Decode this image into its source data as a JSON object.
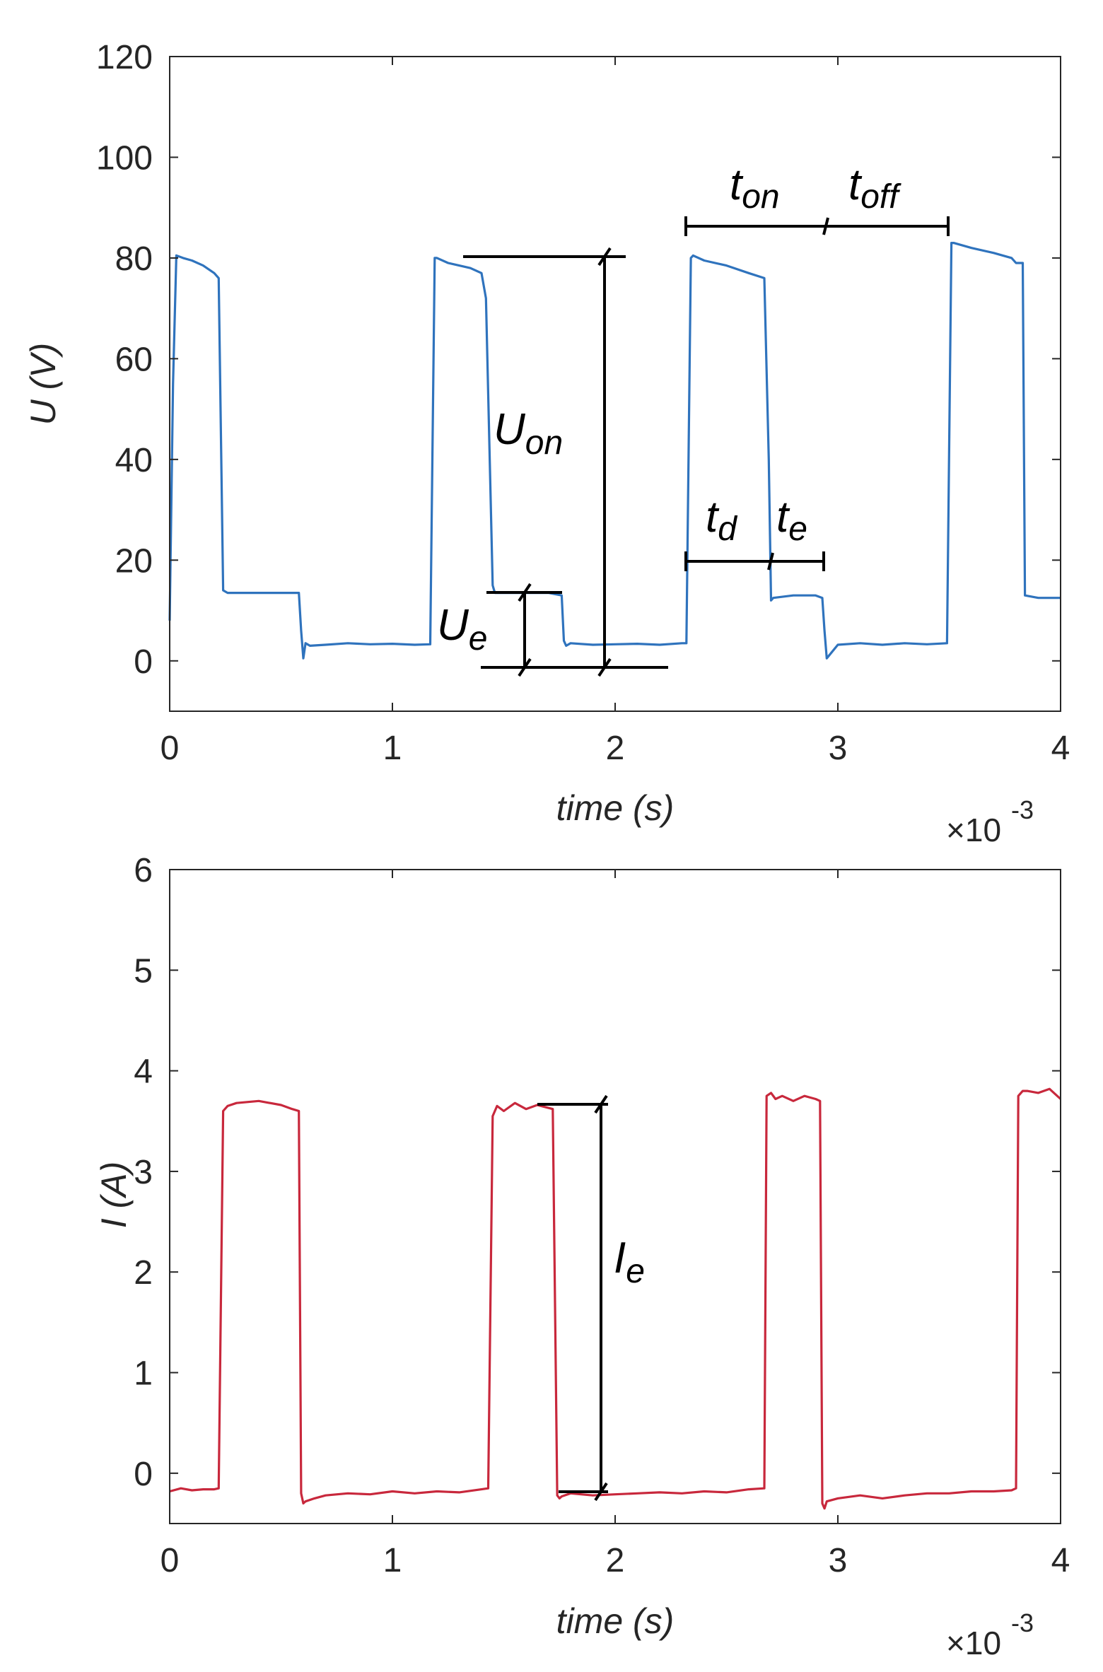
{
  "chart_data": [
    {
      "type": "line",
      "ylabel": "U (V)",
      "xlabel": "time (s)",
      "x_exponent_base": "×10",
      "x_exponent_power": "-3",
      "xlim": [
        0,
        4
      ],
      "ylim": [
        -10,
        120
      ],
      "xticks": [
        0,
        1,
        2,
        3,
        4
      ],
      "yticks": [
        0,
        20,
        40,
        60,
        80,
        100,
        120
      ],
      "grid": false,
      "series": [
        {
          "name": "U",
          "color": "#2f73bd",
          "x": [
            0.0,
            0.015,
            0.03,
            0.06,
            0.1,
            0.15,
            0.2,
            0.22,
            0.24,
            0.26,
            0.3,
            0.4,
            0.5,
            0.58,
            0.59,
            0.6,
            0.61,
            0.63,
            0.7,
            0.8,
            0.9,
            1.0,
            1.1,
            1.17,
            1.19,
            1.2,
            1.25,
            1.3,
            1.35,
            1.4,
            1.42,
            1.45,
            1.46,
            1.5,
            1.6,
            1.7,
            1.76,
            1.77,
            1.78,
            1.8,
            1.9,
            2.0,
            2.1,
            2.2,
            2.3,
            2.32,
            2.34,
            2.35,
            2.4,
            2.5,
            2.6,
            2.67,
            2.69,
            2.7,
            2.71,
            2.8,
            2.9,
            2.93,
            2.94,
            2.95,
            3.0,
            3.1,
            3.2,
            3.3,
            3.4,
            3.49,
            3.51,
            3.52,
            3.6,
            3.7,
            3.78,
            3.8,
            3.83,
            3.84,
            3.9,
            4.0
          ],
          "y": [
            8,
            55,
            80.5,
            80,
            79.5,
            78.5,
            77,
            76,
            14,
            13.5,
            13.5,
            13.5,
            13.5,
            13.5,
            6,
            0.5,
            3.5,
            3,
            3.2,
            3.5,
            3.3,
            3.4,
            3.2,
            3.3,
            80,
            80,
            79,
            78.5,
            78,
            77,
            72,
            15,
            13.5,
            13.5,
            13.5,
            13.5,
            13,
            4,
            3,
            3.5,
            3.2,
            3.3,
            3.4,
            3.2,
            3.5,
            3.5,
            80,
            80.5,
            79.5,
            78.5,
            77,
            76,
            40,
            12,
            12.5,
            13,
            13,
            12.5,
            6,
            0.5,
            3.2,
            3.5,
            3.2,
            3.5,
            3.3,
            3.5,
            83,
            83,
            82,
            81,
            80,
            79,
            79,
            13,
            12.5,
            12.5
          ]
        }
      ],
      "annotations": [
        {
          "main": "U",
          "sub": "on"
        },
        {
          "main": "U",
          "sub": "e"
        },
        {
          "main": "t",
          "sub": "on"
        },
        {
          "main": "t",
          "sub": "off"
        },
        {
          "main": "t",
          "sub": "d"
        },
        {
          "main": "t",
          "sub": "e"
        }
      ]
    },
    {
      "type": "line",
      "ylabel": "I (A)",
      "xlabel": "time (s)",
      "x_exponent_base": "×10",
      "x_exponent_power": "-3",
      "xlim": [
        0,
        4
      ],
      "ylim": [
        -0.5,
        6
      ],
      "xticks": [
        0,
        1,
        2,
        3,
        4
      ],
      "yticks": [
        0,
        1,
        2,
        3,
        4,
        5,
        6
      ],
      "grid": false,
      "series": [
        {
          "name": "I",
          "color": "#c8283c",
          "x": [
            0.0,
            0.05,
            0.1,
            0.15,
            0.2,
            0.22,
            0.24,
            0.26,
            0.3,
            0.4,
            0.5,
            0.55,
            0.58,
            0.59,
            0.6,
            0.61,
            0.65,
            0.7,
            0.8,
            0.9,
            1.0,
            1.1,
            1.2,
            1.3,
            1.4,
            1.43,
            1.45,
            1.47,
            1.5,
            1.55,
            1.6,
            1.65,
            1.72,
            1.74,
            1.75,
            1.76,
            1.8,
            1.9,
            2.0,
            2.1,
            2.2,
            2.3,
            2.4,
            2.5,
            2.6,
            2.67,
            2.68,
            2.7,
            2.72,
            2.75,
            2.8,
            2.85,
            2.9,
            2.92,
            2.93,
            2.94,
            2.95,
            3.0,
            3.1,
            3.2,
            3.3,
            3.4,
            3.5,
            3.6,
            3.7,
            3.78,
            3.8,
            3.81,
            3.83,
            3.85,
            3.9,
            3.95,
            4.0
          ],
          "y": [
            -0.18,
            -0.15,
            -0.17,
            -0.16,
            -0.16,
            -0.15,
            3.6,
            3.65,
            3.68,
            3.7,
            3.66,
            3.62,
            3.6,
            -0.2,
            -0.3,
            -0.28,
            -0.25,
            -0.22,
            -0.2,
            -0.21,
            -0.18,
            -0.2,
            -0.18,
            -0.19,
            -0.16,
            -0.15,
            3.55,
            3.65,
            3.6,
            3.68,
            3.62,
            3.66,
            3.62,
            -0.22,
            -0.25,
            -0.23,
            -0.2,
            -0.22,
            -0.21,
            -0.2,
            -0.19,
            -0.2,
            -0.18,
            -0.19,
            -0.16,
            -0.15,
            3.75,
            3.78,
            3.72,
            3.75,
            3.7,
            3.75,
            3.72,
            3.7,
            -0.3,
            -0.35,
            -0.28,
            -0.25,
            -0.22,
            -0.25,
            -0.22,
            -0.2,
            -0.2,
            -0.18,
            -0.18,
            -0.17,
            -0.15,
            3.75,
            3.8,
            3.8,
            3.78,
            3.82,
            3.72
          ]
        }
      ],
      "annotations": [
        {
          "main": "I",
          "sub": "e"
        }
      ]
    }
  ]
}
